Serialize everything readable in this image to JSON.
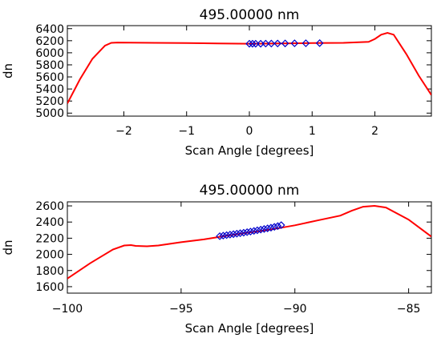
{
  "chart_data": [
    {
      "type": "line",
      "title": "495.00000 nm",
      "xlabel": "Scan Angle [degrees]",
      "ylabel": "dn",
      "xlim": [
        -2.9,
        2.9
      ],
      "ylim": [
        4950,
        6450
      ],
      "xticks": [
        -2,
        -1,
        0,
        1,
        2
      ],
      "xtick_labels": [
        "−2",
        "−1",
        "0",
        "1",
        "2"
      ],
      "yticks": [
        5000,
        5200,
        5400,
        5600,
        5800,
        6000,
        6200,
        6400
      ],
      "ytick_labels": [
        "5000",
        "5200",
        "5400",
        "5600",
        "5800",
        "6000",
        "6200",
        "6400"
      ],
      "grid": false,
      "series": [
        {
          "kind": "line",
          "color": "#ff0000",
          "x": [
            -2.9,
            -2.7,
            -2.5,
            -2.3,
            -2.2,
            -2.1,
            -1.5,
            -1.0,
            -0.5,
            0.0,
            0.5,
            1.0,
            1.5,
            1.9,
            2.0,
            2.1,
            2.2,
            2.3,
            2.5,
            2.7,
            2.9
          ],
          "y": [
            5160,
            5560,
            5900,
            6120,
            6165,
            6170,
            6165,
            6160,
            6155,
            6150,
            6155,
            6160,
            6165,
            6180,
            6230,
            6300,
            6330,
            6300,
            5980,
            5620,
            5300
          ]
        },
        {
          "kind": "scatter",
          "marker": "diamond",
          "color": "#0000cc",
          "x": [
            0.0,
            0.05,
            0.1,
            0.18,
            0.26,
            0.35,
            0.45,
            0.57,
            0.72,
            0.9,
            1.12
          ],
          "y": [
            6150,
            6150,
            6150,
            6150,
            6152,
            6153,
            6154,
            6155,
            6157,
            6158,
            6160
          ]
        }
      ]
    },
    {
      "type": "line",
      "title": "495.00000 nm",
      "xlabel": "Scan Angle [degrees]",
      "ylabel": "dn",
      "xlim": [
        -100,
        -84
      ],
      "ylim": [
        1520,
        2650
      ],
      "xticks": [
        -100,
        -95,
        -90,
        -85
      ],
      "xtick_labels": [
        "−100",
        "−95",
        "−90",
        "−85"
      ],
      "yticks": [
        1600,
        1800,
        2000,
        2200,
        2400,
        2600
      ],
      "ytick_labels": [
        "1600",
        "1800",
        "2000",
        "2200",
        "2400",
        "2600"
      ],
      "grid": false,
      "series": [
        {
          "kind": "line",
          "color": "#ff0000",
          "x": [
            -100,
            -99,
            -98,
            -97.5,
            -97.2,
            -97,
            -96.5,
            -96,
            -95,
            -94,
            -93,
            -92,
            -91,
            -90,
            -89,
            -88,
            -87.5,
            -87,
            -86.5,
            -86,
            -85,
            -84
          ],
          "y": [
            1700,
            1890,
            2060,
            2110,
            2115,
            2105,
            2100,
            2110,
            2150,
            2185,
            2230,
            2270,
            2310,
            2360,
            2420,
            2480,
            2540,
            2590,
            2600,
            2580,
            2430,
            2220
          ]
        },
        {
          "kind": "scatter",
          "marker": "diamond",
          "color": "#0000cc",
          "x": [
            -93.3,
            -93.15,
            -93.0,
            -92.85,
            -92.7,
            -92.55,
            -92.4,
            -92.25,
            -92.1,
            -91.95,
            -91.8,
            -91.65,
            -91.5,
            -91.35,
            -91.2,
            -91.05,
            -90.9,
            -90.75,
            -90.6
          ],
          "y": [
            2225,
            2232,
            2238,
            2244,
            2250,
            2256,
            2262,
            2268,
            2275,
            2282,
            2290,
            2298,
            2306,
            2314,
            2322,
            2330,
            2340,
            2350,
            2362
          ]
        }
      ]
    }
  ]
}
